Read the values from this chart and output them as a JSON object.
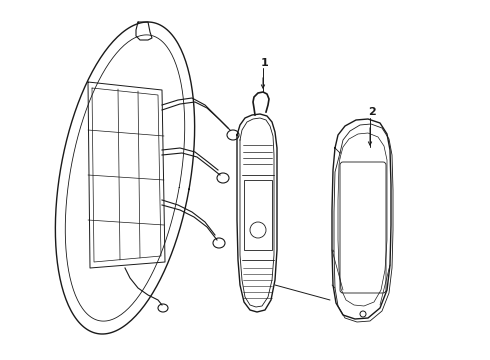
{
  "bg_color": "#ffffff",
  "line_color": "#1a1a1a",
  "label_1": "1",
  "label_2": "2",
  "fig_width": 4.9,
  "fig_height": 3.6,
  "dpi": 100
}
